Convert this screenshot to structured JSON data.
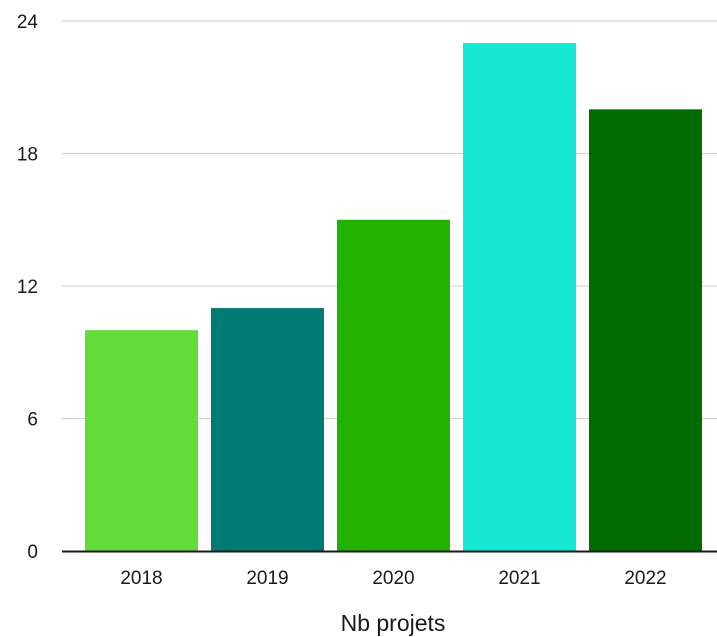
{
  "chart_data": {
    "type": "bar",
    "categories": [
      "2018",
      "2019",
      "2020",
      "2021",
      "2022"
    ],
    "values": [
      10,
      11,
      15,
      23,
      20
    ],
    "colors": [
      "#63dc3a",
      "#007a73",
      "#22b300",
      "#17e8d3",
      "#026b00"
    ],
    "xlabel": "Nb projets",
    "ylabel": "",
    "ylim": [
      0,
      24
    ],
    "yticks": [
      0,
      6,
      12,
      18,
      24
    ],
    "grid": true,
    "gridColor": "#cfcfcf",
    "axisColor": "#1a1a1a"
  }
}
